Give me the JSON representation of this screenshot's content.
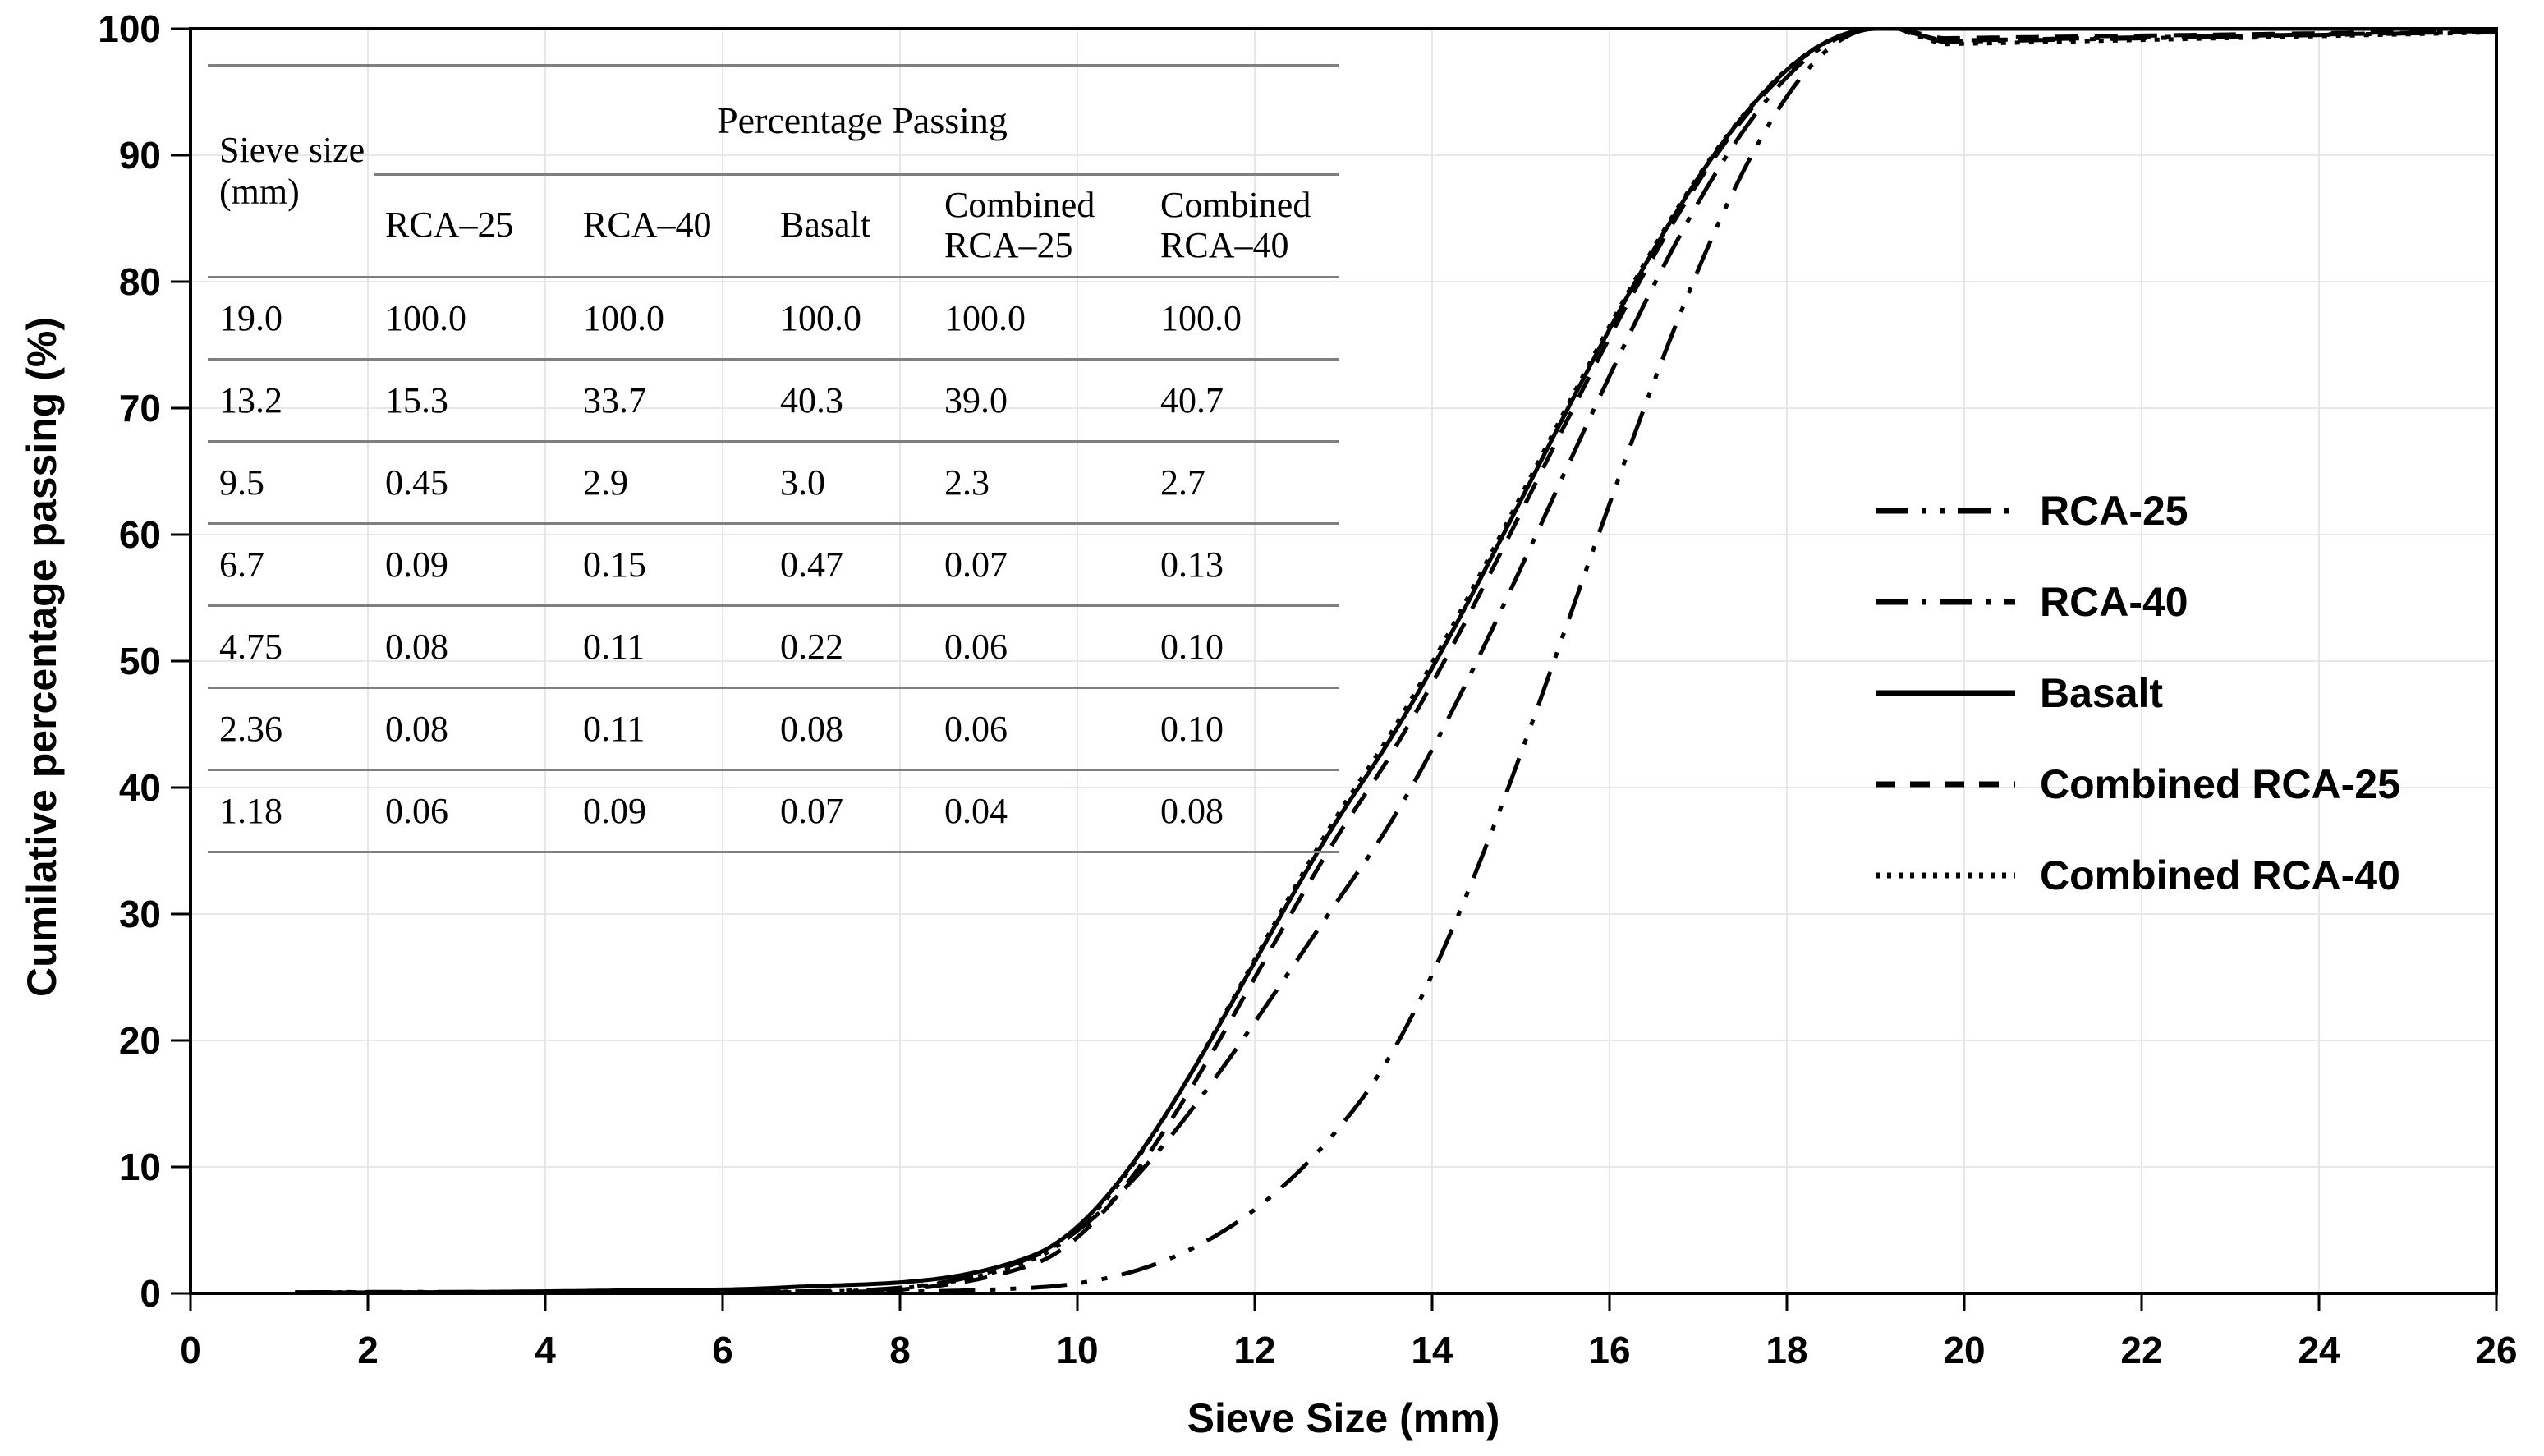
{
  "chart_data": {
    "type": "line",
    "title": "",
    "xlabel": "Sieve Size (mm)",
    "ylabel": "Cumilative percentage passing (%)",
    "xlim": [
      0,
      26
    ],
    "ylim": [
      0,
      100
    ],
    "x_ticks": [
      0,
      2,
      4,
      6,
      8,
      10,
      12,
      14,
      16,
      18,
      20,
      22,
      24,
      26
    ],
    "y_ticks": [
      0,
      10,
      20,
      30,
      40,
      50,
      60,
      70,
      80,
      90,
      100
    ],
    "grid": true,
    "legend_position": "middle-right",
    "x": [
      1.18,
      2.36,
      4.75,
      6.7,
      9.5,
      13.2,
      19.0,
      26.0
    ],
    "series": [
      {
        "name": "RCA-25",
        "line_style": "dash-dot-dot",
        "color": "#000000",
        "values": [
          0.06,
          0.08,
          0.08,
          0.09,
          0.45,
          15.3,
          100.0,
          100.0
        ]
      },
      {
        "name": "RCA-40",
        "line_style": "dash-dot",
        "color": "#000000",
        "values": [
          0.09,
          0.11,
          0.11,
          0.15,
          2.9,
          33.7,
          100.0,
          100.0
        ]
      },
      {
        "name": "Basalt",
        "line_style": "solid",
        "color": "#000000",
        "values": [
          0.07,
          0.08,
          0.22,
          0.47,
          3.0,
          40.3,
          100.0,
          100.0
        ]
      },
      {
        "name": "Combined RCA-25",
        "line_style": "dashed",
        "color": "#000000",
        "values": [
          0.04,
          0.06,
          0.06,
          0.07,
          2.3,
          39.0,
          100.0,
          100.0
        ]
      },
      {
        "name": "Combined RCA-40",
        "line_style": "dotted",
        "color": "#000000",
        "values": [
          0.08,
          0.1,
          0.1,
          0.13,
          2.7,
          40.7,
          100.0,
          100.0
        ]
      }
    ]
  },
  "table": {
    "col1_header": "Sieve size (mm)",
    "group_header": "Percentage Passing",
    "sub_headers": [
      "RCA–25",
      "RCA–40",
      "Basalt",
      "Combined RCA–25",
      "Combined RCA–40"
    ],
    "rows": [
      {
        "sieve": "19.0",
        "values": [
          "100.0",
          "100.0",
          "100.0",
          "100.0",
          "100.0"
        ]
      },
      {
        "sieve": "13.2",
        "values": [
          "15.3",
          "33.7",
          "40.3",
          "39.0",
          "40.7"
        ]
      },
      {
        "sieve": "9.5",
        "values": [
          "0.45",
          "2.9",
          "3.0",
          "2.3",
          "2.7"
        ]
      },
      {
        "sieve": "6.7",
        "values": [
          "0.09",
          "0.15",
          "0.47",
          "0.07",
          "0.13"
        ]
      },
      {
        "sieve": "4.75",
        "values": [
          "0.08",
          "0.11",
          "0.22",
          "0.06",
          "0.10"
        ]
      },
      {
        "sieve": "2.36",
        "values": [
          "0.08",
          "0.11",
          "0.08",
          "0.06",
          "0.10"
        ]
      },
      {
        "sieve": "1.18",
        "values": [
          "0.06",
          "0.09",
          "0.07",
          "0.04",
          "0.08"
        ]
      }
    ]
  },
  "legend": {
    "items": [
      "RCA-25",
      "RCA-40",
      "Basalt",
      "Combined RCA-25",
      "Combined RCA-40"
    ]
  },
  "colors": {
    "line": "#000000",
    "grid": "#e7e7e7",
    "axis": "#000000",
    "table_border": "#7f7f7f",
    "background": "#ffffff"
  }
}
